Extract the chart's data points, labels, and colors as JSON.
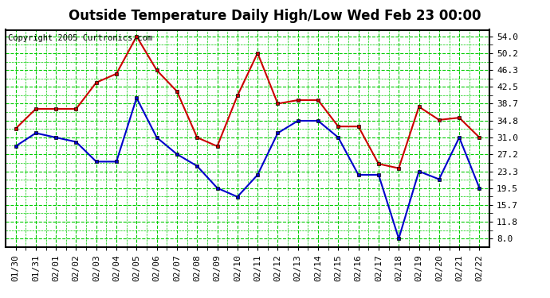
{
  "title": "Outside Temperature Daily High/Low Wed Feb 23 00:00",
  "copyright": "Copyright 2005 Curtronics.com",
  "x_labels": [
    "01/30",
    "01/31",
    "02/01",
    "02/02",
    "02/03",
    "02/04",
    "02/05",
    "02/06",
    "02/07",
    "02/08",
    "02/09",
    "02/10",
    "02/11",
    "02/12",
    "02/13",
    "02/14",
    "02/15",
    "02/16",
    "02/17",
    "02/18",
    "02/19",
    "02/20",
    "02/21",
    "02/22"
  ],
  "high_temps": [
    33.0,
    37.5,
    37.5,
    37.5,
    43.5,
    45.5,
    54.0,
    46.3,
    41.5,
    31.0,
    29.0,
    40.5,
    50.2,
    38.7,
    39.5,
    39.5,
    33.5,
    33.5,
    25.0,
    24.0,
    38.0,
    35.0,
    35.5,
    31.0
  ],
  "low_temps": [
    29.0,
    32.0,
    31.0,
    30.0,
    25.5,
    25.5,
    40.0,
    31.0,
    27.2,
    24.5,
    19.5,
    17.5,
    22.5,
    32.0,
    34.8,
    34.8,
    31.0,
    22.5,
    22.5,
    8.0,
    23.3,
    21.5,
    31.0,
    19.5
  ],
  "high_color": "#cc0000",
  "low_color": "#0000cc",
  "bg_color": "#ffffff",
  "grid_color": "#00cc00",
  "title_color": "#000000",
  "yticks": [
    8.0,
    11.8,
    15.7,
    19.5,
    23.3,
    27.2,
    31.0,
    34.8,
    38.7,
    42.5,
    46.3,
    50.2,
    54.0
  ],
  "ylim": [
    6.0,
    55.5
  ],
  "marker": "s",
  "marker_size": 3,
  "linewidth": 1.5,
  "title_fontsize": 12,
  "tick_fontsize": 8,
  "copyright_fontsize": 7.5
}
